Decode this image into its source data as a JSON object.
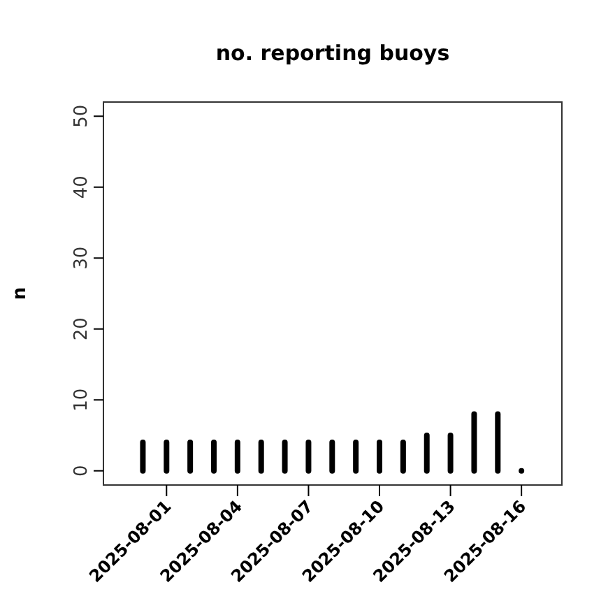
{
  "chart_data": {
    "type": "bar",
    "title": "no. reporting buoys",
    "ylabel": "n",
    "x": [
      "2025-07-31",
      "2025-08-01",
      "2025-08-02",
      "2025-08-03",
      "2025-08-04",
      "2025-08-05",
      "2025-08-06",
      "2025-08-07",
      "2025-08-08",
      "2025-08-09",
      "2025-08-10",
      "2025-08-11",
      "2025-08-12",
      "2025-08-13",
      "2025-08-14",
      "2025-08-15",
      "2025-08-16"
    ],
    "values": [
      4,
      4,
      4,
      4,
      4,
      4,
      4,
      4,
      4,
      4,
      4,
      4,
      5,
      5,
      8,
      8,
      0
    ],
    "color": "#000000",
    "xlim": [
      "2025-07-29T08:00",
      "2025-08-17T17:00"
    ],
    "xticks": [
      "2025-08-01",
      "2025-08-04",
      "2025-08-07",
      "2025-08-10",
      "2025-08-13",
      "2025-08-16"
    ],
    "ylim": [
      -2,
      52
    ],
    "yticks": [
      0,
      10,
      20,
      30,
      40,
      50
    ]
  }
}
